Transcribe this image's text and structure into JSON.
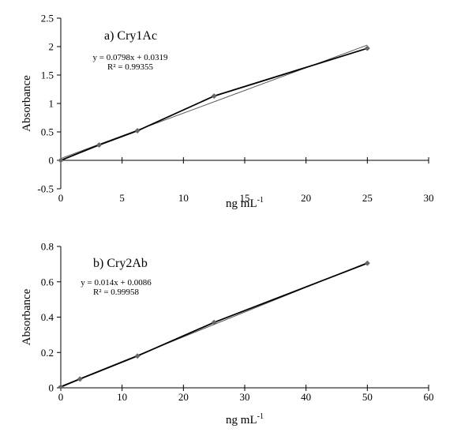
{
  "chart_data": [
    {
      "type": "line",
      "panel_label": "a) Cry1Ac",
      "xlabel": "ng mL",
      "xlabel_sup": "-1",
      "ylabel": "Absorbance",
      "xlim": [
        0,
        30
      ],
      "ylim": [
        -0.5,
        2.5
      ],
      "xticks": [
        0,
        5,
        10,
        15,
        20,
        25,
        30
      ],
      "xtick_labels": [
        "0",
        "5",
        "10",
        "15",
        "20",
        "25",
        "30"
      ],
      "yticks": [
        -0.5,
        0,
        0.5,
        1,
        1.5,
        2,
        2.5
      ],
      "ytick_labels": [
        "-0.5",
        "0",
        "0.5",
        "1",
        "1.5",
        "2",
        "2.5"
      ],
      "grid": false,
      "series": [
        {
          "x": [
            0,
            3.125,
            6.25,
            12.5,
            25
          ],
          "values": [
            0,
            0.27,
            0.52,
            1.13,
            1.97
          ],
          "color": "#000000",
          "marker": "diamond",
          "marker_color": "#666666"
        }
      ],
      "trendline": {
        "slope": 0.0798,
        "intercept": 0.0319,
        "color": "#555555"
      },
      "equation": "y = 0.0798x + 0.0319",
      "r2": "R² = 0.99355"
    },
    {
      "type": "line",
      "panel_label": "b) Cry2Ab",
      "xlabel": "ng mL",
      "xlabel_sup": "-1",
      "ylabel": "Absorbance",
      "xlim": [
        0,
        60
      ],
      "ylim": [
        0,
        0.8
      ],
      "xticks": [
        0,
        10,
        20,
        30,
        40,
        50,
        60
      ],
      "xtick_labels": [
        "0",
        "10",
        "20",
        "30",
        "40",
        "50",
        "60"
      ],
      "yticks": [
        0,
        0.2,
        0.4,
        0.6,
        0.8
      ],
      "ytick_labels": [
        "0",
        "0.2",
        "0.4",
        "0.6",
        "0.8"
      ],
      "grid": false,
      "series": [
        {
          "x": [
            0,
            3.125,
            12.5,
            25,
            50
          ],
          "values": [
            0.005,
            0.05,
            0.18,
            0.37,
            0.705
          ],
          "color": "#000000",
          "marker": "diamond",
          "marker_color": "#666666"
        }
      ],
      "trendline": {
        "slope": 0.014,
        "intercept": 0.0086,
        "color": "#555555"
      },
      "equation": "y = 0.014x + 0.0086",
      "r2": "R² = 0.99958"
    }
  ]
}
